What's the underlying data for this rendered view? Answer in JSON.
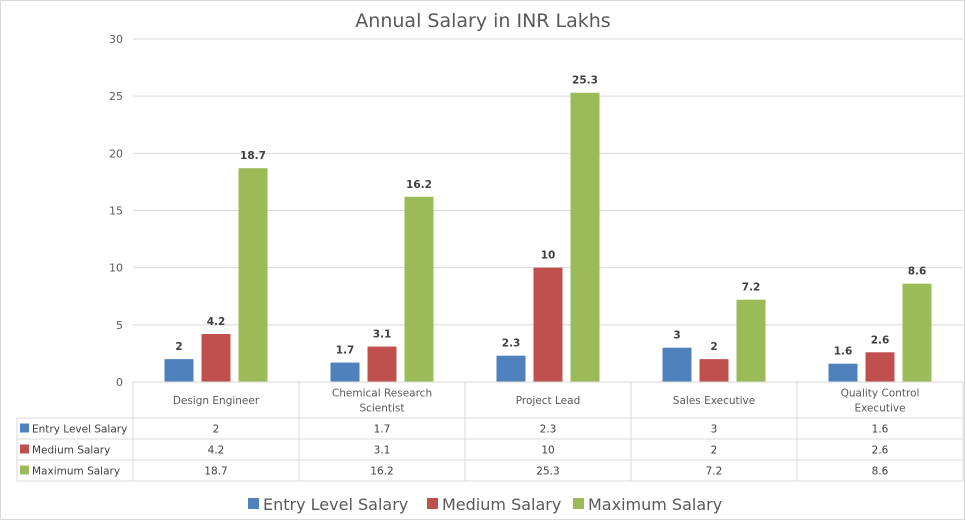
{
  "chart_data": {
    "type": "bar",
    "title": "Annual Salary in INR Lakhs",
    "xlabel": "",
    "ylabel": "",
    "ylim": [
      0,
      30
    ],
    "yticks": [
      0,
      5,
      10,
      15,
      20,
      25,
      30
    ],
    "grid": true,
    "categories": [
      [
        "Design Engineer"
      ],
      [
        "Chemical Research",
        "Scientist"
      ],
      [
        "Project Lead"
      ],
      [
        "Sales Executive"
      ],
      [
        "Quality Control",
        "Executive"
      ]
    ],
    "series": [
      {
        "name": "Entry Level Salary",
        "color": "#4f81bd",
        "values": [
          2,
          1.7,
          2.3,
          3,
          1.6
        ]
      },
      {
        "name": "Medium Salary",
        "color": "#c0504d",
        "values": [
          4.2,
          3.1,
          10,
          2,
          2.6
        ]
      },
      {
        "name": "Maximum Salary",
        "color": "#9bbb59",
        "values": [
          18.7,
          16.2,
          25.3,
          7.2,
          8.6
        ]
      }
    ],
    "data_labels": true,
    "data_table": true,
    "legend": "bottom"
  }
}
